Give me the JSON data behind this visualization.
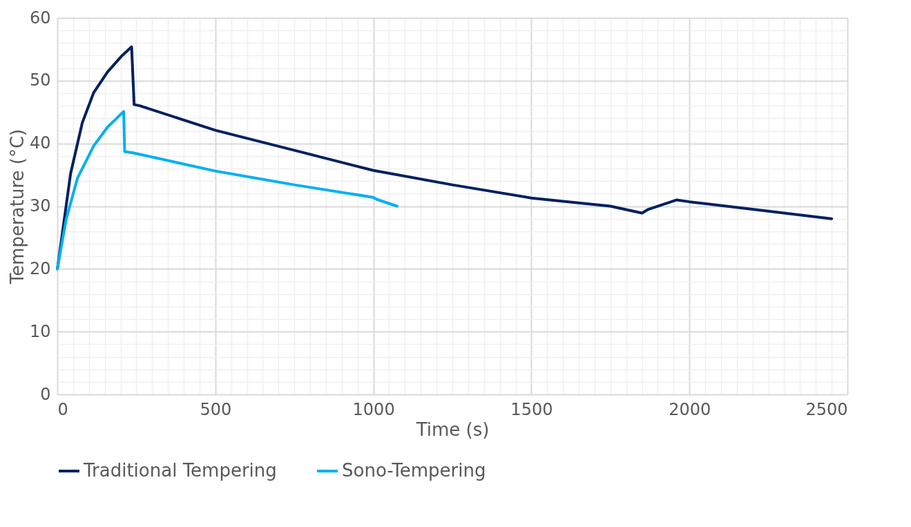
{
  "chart_data": {
    "type": "line",
    "xlabel": "Time (s)",
    "ylabel": "Temperature (°C)",
    "series": [
      {
        "name": "Traditional Tempering",
        "color": "#002060",
        "x": [
          0,
          2,
          42,
          79,
          115,
          159,
          203,
          235,
          243,
          261,
          500,
          750,
          1000,
          1250,
          1500,
          1750,
          1850,
          1870,
          1960,
          2000,
          2250,
          2450
        ],
        "values": [
          20,
          20.6,
          35.2,
          43.3,
          48.1,
          51.4,
          53.9,
          55.4,
          46.2,
          46.0,
          42.1,
          38.9,
          35.7,
          33.4,
          31.3,
          30.0,
          28.9,
          29.5,
          31.0,
          30.7,
          29.2,
          28.0
        ]
      },
      {
        "name": "Sono-Tempering",
        "color": "#00b0f0",
        "x": [
          0,
          28,
          64,
          115,
          159,
          210,
          213,
          239,
          500,
          750,
          1000,
          1010,
          1075
        ],
        "values": [
          20,
          27.9,
          34.5,
          39.6,
          42.6,
          45.1,
          38.7,
          38.5,
          35.6,
          33.4,
          31.4,
          31.1,
          30.0
        ]
      }
    ],
    "xlim": [
      0,
      2500
    ],
    "ylim": [
      0,
      60
    ],
    "xticks": [
      0,
      {
        "value": 50,
        "label": null
      },
      {
        "value": 100,
        "label": null
      },
      {
        "value": 150,
        "label": null
      },
      {
        "value": 200,
        "label": null
      },
      {
        "value": 250,
        "label": null
      },
      {
        "value": 300,
        "label": null
      },
      {
        "value": 350,
        "label": null
      },
      {
        "value": 400,
        "label": null
      },
      {
        "value": 450,
        "label": null
      },
      500,
      {
        "value": 550,
        "label": null
      },
      {
        "value": 600,
        "label": null
      },
      {
        "value": 650,
        "label": null
      },
      {
        "value": 700,
        "label": null
      },
      {
        "value": 750,
        "label": null
      },
      {
        "value": 800,
        "label": null
      },
      {
        "value": 850,
        "label": null
      },
      {
        "value": 900,
        "label": null
      },
      {
        "value": 950,
        "label": null
      },
      1000,
      {
        "value": 1050,
        "label": null
      },
      {
        "value": 1100,
        "label": null
      },
      {
        "value": 1150,
        "label": null
      },
      {
        "value": 1200,
        "label": null
      },
      {
        "value": 1250,
        "label": null
      },
      {
        "value": 1300,
        "label": null
      },
      {
        "value": 1350,
        "label": null
      },
      {
        "value": 1400,
        "label": null
      },
      {
        "value": 1450,
        "label": null
      },
      1500,
      {
        "value": 1550,
        "label": null
      },
      {
        "value": 1600,
        "label": null
      },
      {
        "value": 1650,
        "label": null
      },
      {
        "value": 1700,
        "label": null
      },
      {
        "value": 1750,
        "label": null
      },
      {
        "value": 1800,
        "label": null
      },
      {
        "value": 1850,
        "label": null
      },
      {
        "value": 1900,
        "label": null
      },
      {
        "value": 1950,
        "label": null
      },
      2000,
      {
        "value": 2050,
        "label": null
      },
      {
        "value": 2100,
        "label": null
      },
      {
        "value": 2150,
        "label": null
      },
      {
        "value": 2200,
        "label": null
      },
      {
        "value": 2250,
        "label": null
      },
      {
        "value": 2300,
        "label": null
      },
      {
        "value": 2350,
        "label": null
      },
      {
        "value": 2400,
        "label": null
      },
      {
        "value": 2450,
        "label": null
      },
      2500
    ],
    "yticks": [
      0,
      {
        "value": 2,
        "label": null
      },
      {
        "value": 4,
        "label": null
      },
      {
        "value": 6,
        "label": null
      },
      {
        "value": 8,
        "label": null
      },
      10,
      {
        "value": 12,
        "label": null
      },
      {
        "value": 14,
        "label": null
      },
      {
        "value": 16,
        "label": null
      },
      {
        "value": 18,
        "label": null
      },
      20,
      {
        "value": 22,
        "label": null
      },
      {
        "value": 24,
        "label": null
      },
      {
        "value": 26,
        "label": null
      },
      {
        "value": 28,
        "label": null
      },
      30,
      {
        "value": 32,
        "label": null
      },
      {
        "value": 34,
        "label": null
      },
      {
        "value": 36,
        "label": null
      },
      {
        "value": 38,
        "label": null
      },
      40,
      {
        "value": 42,
        "label": null
      },
      {
        "value": 44,
        "label": null
      },
      {
        "value": 46,
        "label": null
      },
      {
        "value": 48,
        "label": null
      },
      50,
      {
        "value": 52,
        "label": null
      },
      {
        "value": 54,
        "label": null
      },
      {
        "value": 56,
        "label": null
      },
      {
        "value": 58,
        "label": null
      },
      60
    ],
    "grid": true,
    "legend": "bottom",
    "marker": "none",
    "line_style": "solid"
  }
}
